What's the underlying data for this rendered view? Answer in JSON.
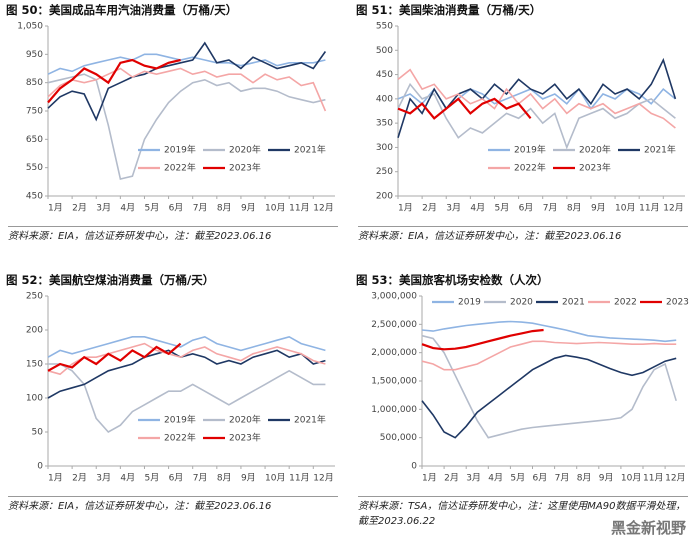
{
  "chart_data": [
    {
      "type": "line",
      "title": "图 50：美国成品车用汽油消费量（万桶/天）",
      "source": "资料来源：EIA，信达证券研发中心，注：截至2023.06.16",
      "x": [
        1,
        1.5,
        2,
        2.5,
        3,
        3.5,
        4,
        4.5,
        5,
        5.5,
        6,
        6.5,
        7,
        7.5,
        8,
        8.5,
        9,
        9.5,
        10,
        10.5,
        11,
        11.5,
        12,
        12.5
      ],
      "xlim": [
        1,
        12.9
      ],
      "xticks": [
        {
          "value": 1,
          "label": "1月"
        },
        {
          "value": 2,
          "label": "2月"
        },
        {
          "value": 3,
          "label": "3月"
        },
        {
          "value": 4,
          "label": "4月"
        },
        {
          "value": 5,
          "label": "5月"
        },
        {
          "value": 6,
          "label": "6月"
        },
        {
          "value": 7,
          "label": "7月"
        },
        {
          "value": 8,
          "label": "8月"
        },
        {
          "value": 9,
          "label": "9月"
        },
        {
          "value": 10,
          "label": "10月"
        },
        {
          "value": 11,
          "label": "11月"
        },
        {
          "value": 12,
          "label": "12月"
        }
      ],
      "ylim": [
        450,
        1050
      ],
      "yticks": [
        450,
        550,
        650,
        750,
        850,
        950,
        {
          "value": 1050,
          "label": "1,050"
        }
      ],
      "legend": "bottom",
      "series": [
        {
          "name": "2019年",
          "color": "#8fb4e3",
          "values": [
            880,
            900,
            890,
            910,
            920,
            930,
            940,
            930,
            950,
            950,
            940,
            930,
            940,
            930,
            920,
            920,
            910,
            920,
            930,
            910,
            920,
            920,
            920,
            930
          ]
        },
        {
          "name": "2020年",
          "color": "#b4bccb",
          "values": [
            850,
            860,
            870,
            880,
            860,
            700,
            510,
            520,
            650,
            720,
            780,
            820,
            850,
            860,
            840,
            850,
            820,
            830,
            830,
            820,
            800,
            790,
            780,
            790
          ]
        },
        {
          "name": "2021年",
          "color": "#1f3864",
          "values": [
            760,
            800,
            820,
            810,
            720,
            830,
            850,
            870,
            880,
            900,
            910,
            920,
            930,
            990,
            920,
            930,
            900,
            940,
            920,
            900,
            910,
            920,
            900,
            960
          ]
        },
        {
          "name": "2022年",
          "color": "#f4a6a6",
          "values": [
            800,
            840,
            860,
            850,
            860,
            880,
            900,
            870,
            890,
            880,
            890,
            900,
            880,
            890,
            870,
            880,
            880,
            850,
            880,
            860,
            870,
            840,
            850,
            750
          ]
        },
        {
          "name": "2023年",
          "color": "#e00000",
          "values": [
            780,
            830,
            860,
            900,
            880,
            850,
            920,
            930,
            910,
            900,
            920,
            930,
            null,
            null,
            null,
            null,
            null,
            null,
            null,
            null,
            null,
            null,
            null,
            null
          ]
        }
      ]
    },
    {
      "type": "line",
      "title": "图 51：美国柴油消费量（万桶/天）",
      "source": "资料来源：EIA，信达证券研发中心，注：截至2023.06.16",
      "x": [
        1,
        1.5,
        2,
        2.5,
        3,
        3.5,
        4,
        4.5,
        5,
        5.5,
        6,
        6.5,
        7,
        7.5,
        8,
        8.5,
        9,
        9.5,
        10,
        10.5,
        11,
        11.5,
        12,
        12.5
      ],
      "xlim": [
        1,
        12.9
      ],
      "xticks": [
        {
          "value": 1,
          "label": "1月"
        },
        {
          "value": 2,
          "label": "2月"
        },
        {
          "value": 3,
          "label": "3月"
        },
        {
          "value": 4,
          "label": "4月"
        },
        {
          "value": 5,
          "label": "5月"
        },
        {
          "value": 6,
          "label": "6月"
        },
        {
          "value": 7,
          "label": "7月"
        },
        {
          "value": 8,
          "label": "8月"
        },
        {
          "value": 9,
          "label": "9月"
        },
        {
          "value": 10,
          "label": "10月"
        },
        {
          "value": 11,
          "label": "11月"
        },
        {
          "value": 12,
          "label": "12月"
        }
      ],
      "ylim": [
        200,
        550
      ],
      "yticks": [
        200,
        250,
        300,
        350,
        400,
        450,
        500,
        550
      ],
      "legend": "bottom",
      "series": [
        {
          "name": "2019年",
          "color": "#8fb4e3",
          "values": [
            400,
            410,
            390,
            420,
            380,
            400,
            420,
            410,
            390,
            400,
            410,
            420,
            400,
            410,
            390,
            420,
            380,
            410,
            400,
            420,
            410,
            390,
            420,
            400
          ]
        },
        {
          "name": "2020年",
          "color": "#b4bccb",
          "values": [
            380,
            430,
            400,
            410,
            360,
            320,
            340,
            330,
            350,
            370,
            360,
            380,
            350,
            370,
            300,
            360,
            370,
            380,
            360,
            370,
            390,
            400,
            380,
            360
          ]
        },
        {
          "name": "2021年",
          "color": "#1f3864",
          "values": [
            320,
            400,
            370,
            420,
            380,
            410,
            420,
            400,
            430,
            410,
            440,
            420,
            410,
            430,
            400,
            420,
            390,
            430,
            410,
            420,
            400,
            430,
            480,
            400
          ]
        },
        {
          "name": "2022年",
          "color": "#f4a6a6",
          "values": [
            440,
            460,
            420,
            430,
            400,
            410,
            390,
            400,
            380,
            420,
            390,
            410,
            380,
            400,
            370,
            390,
            380,
            390,
            370,
            380,
            390,
            370,
            360,
            340
          ]
        },
        {
          "name": "2023年",
          "color": "#e00000",
          "values": [
            380,
            370,
            390,
            360,
            380,
            400,
            370,
            390,
            400,
            380,
            390,
            360,
            null,
            null,
            null,
            null,
            null,
            null,
            null,
            null,
            null,
            null,
            null,
            null
          ]
        }
      ]
    },
    {
      "type": "line",
      "title": "图 52：美国航空煤油消费量（万桶/天）",
      "source": "资料来源：EIA，信达证券研发中心，注：截至2023.06.16",
      "x": [
        1,
        1.5,
        2,
        2.5,
        3,
        3.5,
        4,
        4.5,
        5,
        5.5,
        6,
        6.5,
        7,
        7.5,
        8,
        8.5,
        9,
        9.5,
        10,
        10.5,
        11,
        11.5,
        12,
        12.5
      ],
      "xlim": [
        1,
        12.9
      ],
      "xticks": [
        {
          "value": 1,
          "label": "1月"
        },
        {
          "value": 2,
          "label": "2月"
        },
        {
          "value": 3,
          "label": "3月"
        },
        {
          "value": 4,
          "label": "4月"
        },
        {
          "value": 5,
          "label": "5月"
        },
        {
          "value": 6,
          "label": "6月"
        },
        {
          "value": 7,
          "label": "7月"
        },
        {
          "value": 8,
          "label": "8月"
        },
        {
          "value": 9,
          "label": "9月"
        },
        {
          "value": 10,
          "label": "10月"
        },
        {
          "value": 11,
          "label": "11月"
        },
        {
          "value": 12,
          "label": "12月"
        }
      ],
      "ylim": [
        0,
        250
      ],
      "yticks": [
        0,
        50,
        100,
        150,
        200,
        250
      ],
      "legend": "bottom",
      "series": [
        {
          "name": "2019年",
          "color": "#8fb4e3",
          "values": [
            160,
            170,
            165,
            170,
            175,
            180,
            185,
            190,
            190,
            185,
            180,
            175,
            185,
            190,
            180,
            175,
            170,
            175,
            180,
            185,
            190,
            180,
            175,
            170
          ]
        },
        {
          "name": "2020年",
          "color": "#b4bccb",
          "values": [
            150,
            150,
            140,
            120,
            70,
            50,
            60,
            80,
            90,
            100,
            110,
            110,
            120,
            110,
            100,
            90,
            100,
            110,
            120,
            130,
            140,
            130,
            120,
            120
          ]
        },
        {
          "name": "2021年",
          "color": "#1f3864",
          "values": [
            100,
            110,
            115,
            120,
            130,
            140,
            145,
            150,
            160,
            165,
            170,
            160,
            165,
            160,
            150,
            155,
            150,
            160,
            165,
            170,
            160,
            165,
            150,
            155
          ]
        },
        {
          "name": "2022年",
          "color": "#f4a6a6",
          "values": [
            140,
            135,
            150,
            160,
            160,
            165,
            170,
            175,
            180,
            170,
            165,
            160,
            170,
            175,
            165,
            160,
            155,
            165,
            170,
            175,
            170,
            165,
            155,
            150
          ]
        },
        {
          "name": "2023年",
          "color": "#e00000",
          "values": [
            140,
            150,
            145,
            160,
            150,
            165,
            155,
            170,
            160,
            175,
            165,
            180,
            null,
            null,
            null,
            null,
            null,
            null,
            null,
            null,
            null,
            null,
            null,
            null
          ]
        }
      ]
    },
    {
      "type": "line",
      "title": "图 53：美国旅客机场安检数（人次）",
      "source": "资料来源：TSA，信达证券研发中心，注：这里使用MA90数据平滑处理，截至2023.06.22",
      "x": [
        1,
        1.5,
        2,
        2.5,
        3,
        3.5,
        4,
        4.5,
        5,
        5.5,
        6,
        6.5,
        7,
        7.5,
        8,
        8.5,
        9,
        9.5,
        10,
        10.5,
        11,
        11.5,
        12,
        12.5
      ],
      "xlim": [
        1,
        12.9
      ],
      "xticks": [
        {
          "value": 1,
          "label": "1月"
        },
        {
          "value": 2,
          "label": "2月"
        },
        {
          "value": 3,
          "label": "3月"
        },
        {
          "value": 4,
          "label": "4月"
        },
        {
          "value": 5,
          "label": "5月"
        },
        {
          "value": 6,
          "label": "6月"
        },
        {
          "value": 7,
          "label": "7月"
        },
        {
          "value": 8,
          "label": "8月"
        },
        {
          "value": 9,
          "label": "9月"
        },
        {
          "value": 10,
          "label": "10月"
        },
        {
          "value": 11,
          "label": "11月"
        },
        {
          "value": 12,
          "label": "12月"
        }
      ],
      "ylim": [
        0,
        3000000
      ],
      "yticks": [
        0,
        {
          "value": 500000,
          "label": "500,000"
        },
        {
          "value": 1000000,
          "label": "1,000,000"
        },
        {
          "value": 1500000,
          "label": "1,500,000"
        },
        {
          "value": 2000000,
          "label": "2,000,000"
        },
        {
          "value": 2500000,
          "label": "2,500,000"
        },
        {
          "value": 3000000,
          "label": "3,000,000"
        }
      ],
      "legend": "top",
      "series": [
        {
          "name": "2019",
          "color": "#8fb4e3",
          "values": [
            2400000,
            2380000,
            2420000,
            2450000,
            2480000,
            2500000,
            2520000,
            2540000,
            2550000,
            2540000,
            2520000,
            2480000,
            2440000,
            2400000,
            2350000,
            2300000,
            2280000,
            2260000,
            2250000,
            2240000,
            2230000,
            2220000,
            2200000,
            2220000
          ]
        },
        {
          "name": "2020",
          "color": "#b4bccb",
          "values": [
            2300000,
            2250000,
            2000000,
            1600000,
            1200000,
            800000,
            500000,
            550000,
            600000,
            650000,
            680000,
            700000,
            720000,
            740000,
            760000,
            780000,
            800000,
            820000,
            850000,
            1000000,
            1400000,
            1700000,
            1800000,
            1150000
          ]
        },
        {
          "name": "2021",
          "color": "#1f3864",
          "values": [
            1150000,
            900000,
            600000,
            500000,
            700000,
            950000,
            1100000,
            1250000,
            1400000,
            1550000,
            1700000,
            1800000,
            1900000,
            1950000,
            1920000,
            1880000,
            1800000,
            1720000,
            1650000,
            1600000,
            1650000,
            1750000,
            1850000,
            1900000
          ]
        },
        {
          "name": "2022",
          "color": "#f4a6a6",
          "values": [
            1850000,
            1800000,
            1700000,
            1700000,
            1750000,
            1800000,
            1900000,
            2000000,
            2100000,
            2150000,
            2200000,
            2200000,
            2180000,
            2170000,
            2160000,
            2170000,
            2180000,
            2170000,
            2160000,
            2150000,
            2150000,
            2160000,
            2150000,
            2150000
          ]
        },
        {
          "name": "2023",
          "color": "#e00000",
          "values": [
            2150000,
            2080000,
            2060000,
            2070000,
            2100000,
            2150000,
            2200000,
            2250000,
            2300000,
            2340000,
            2380000,
            2400000,
            null,
            null,
            null,
            null,
            null,
            null,
            null,
            null,
            null,
            null,
            null,
            null
          ]
        }
      ]
    }
  ],
  "watermark": "黑金新视野"
}
